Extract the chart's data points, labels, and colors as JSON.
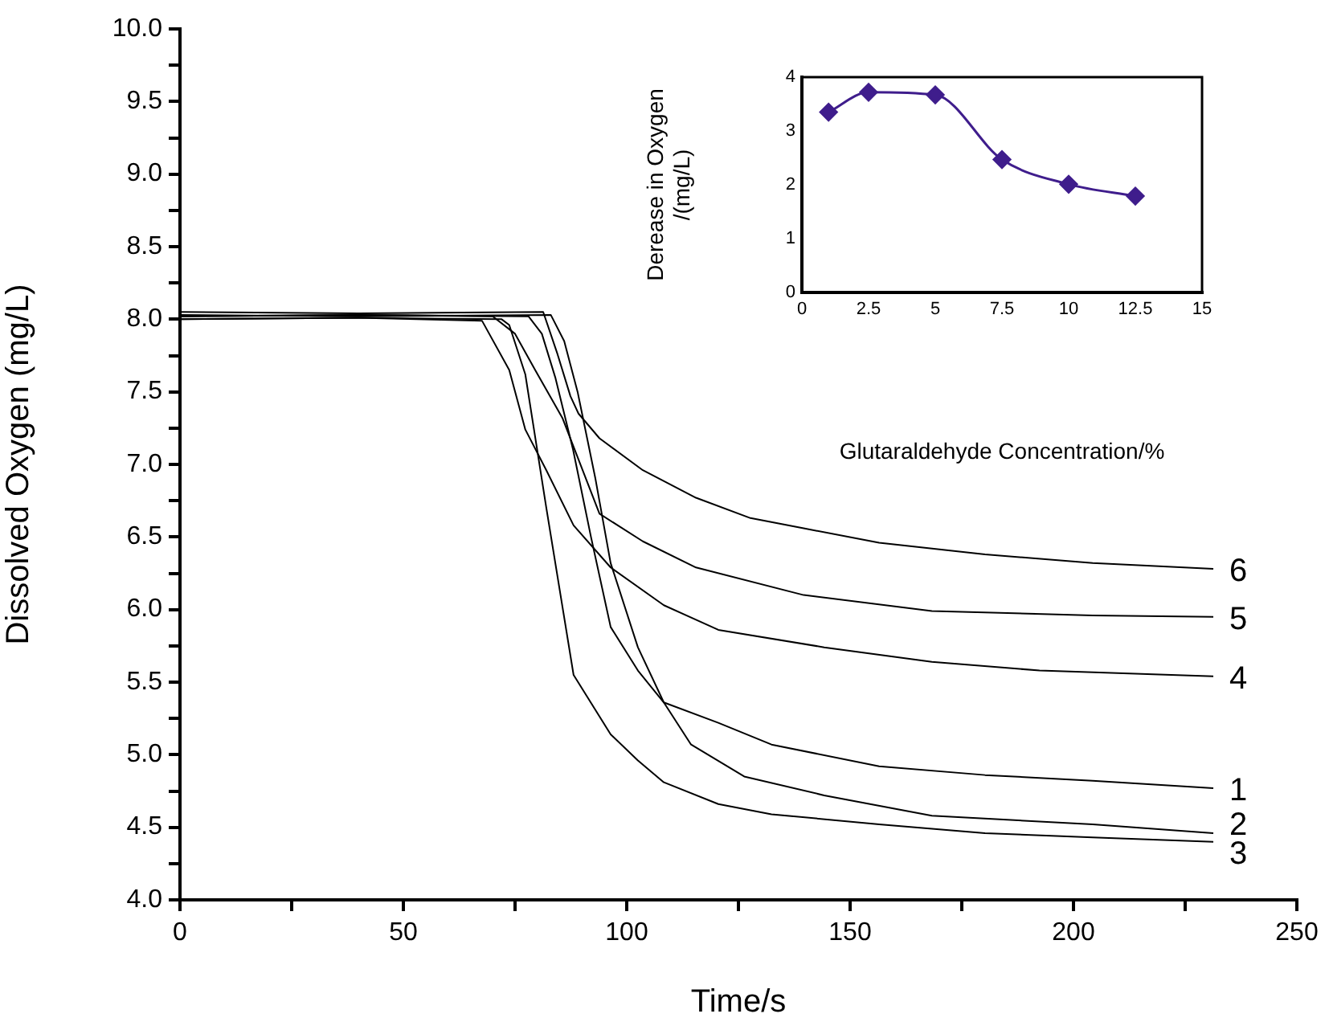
{
  "chart_data": [
    {
      "type": "line",
      "xlabel": "Time/s",
      "ylabel": "Dissolved Oxygen (mg/L)",
      "xlim": [
        0,
        250
      ],
      "xticks": [
        0,
        {
          "value": 25,
          "label": null
        },
        50,
        {
          "value": 75,
          "label": null
        },
        100,
        {
          "value": 125,
          "label": null
        },
        150,
        {
          "value": 175,
          "label": null
        },
        200,
        {
          "value": 225,
          "label": null
        },
        250
      ],
      "ylim": [
        4,
        10
      ],
      "yticks": [
        {
          "value": 4,
          "label": "4.0"
        },
        {
          "value": 4.25,
          "label": null
        },
        4.5,
        {
          "value": 4.75,
          "label": null
        },
        {
          "value": 5,
          "label": "5.0"
        },
        {
          "value": 5.25,
          "label": null
        },
        5.5,
        {
          "value": 5.75,
          "label": null
        },
        {
          "value": 6,
          "label": "6.0"
        },
        {
          "value": 6.25,
          "label": null
        },
        6.5,
        {
          "value": 6.75,
          "label": null
        },
        {
          "value": 7,
          "label": "7.0"
        },
        {
          "value": 7.25,
          "label": null
        },
        7.5,
        {
          "value": 7.75,
          "label": null
        },
        {
          "value": 8,
          "label": "8.0"
        },
        {
          "value": 8.25,
          "label": null
        },
        8.5,
        {
          "value": 8.75,
          "label": null
        },
        {
          "value": 9,
          "label": "9.0"
        },
        {
          "value": 9.25,
          "label": null
        },
        9.5,
        {
          "value": 9.75,
          "label": null
        },
        {
          "value": 10,
          "label": "10.0"
        }
      ],
      "marker": "none",
      "series": [
        {
          "name": "1",
          "color": "#000000",
          "x": [
            0,
            40,
            78,
            81,
            84,
            88,
            92,
            96.4,
            102.5,
            108.3,
            120.5,
            132.4,
            156.5,
            180.2,
            204.3,
            231.3
          ],
          "values": [
            8.02,
            8.03,
            8.02,
            7.9,
            7.6,
            7.1,
            6.5,
            5.88,
            5.58,
            5.36,
            5.22,
            5.07,
            4.92,
            4.86,
            4.82,
            4.77
          ]
        },
        {
          "name": "2",
          "color": "#000000",
          "x": [
            0,
            40,
            83,
            86,
            89,
            93,
            96.4,
            102.5,
            108.3,
            114.4,
            126.3,
            144.2,
            168.3,
            204.3,
            231.3
          ],
          "values": [
            8.03,
            8.02,
            8.03,
            7.85,
            7.5,
            6.9,
            6.32,
            5.74,
            5.36,
            5.07,
            4.85,
            4.72,
            4.58,
            4.52,
            4.46
          ]
        },
        {
          "name": "3",
          "color": "#000000",
          "x": [
            0,
            40,
            72,
            73.7,
            77.3,
            82,
            88.1,
            96.4,
            102.5,
            108.3,
            120.5,
            132.4,
            156.5,
            180.2,
            204.3,
            231.3
          ],
          "values": [
            8.0,
            8.01,
            8.0,
            7.96,
            7.62,
            6.7,
            5.55,
            5.14,
            4.96,
            4.81,
            4.66,
            4.59,
            4.52,
            4.46,
            4.43,
            4.4
          ]
        },
        {
          "name": "4",
          "color": "#000000",
          "x": [
            0,
            40,
            67.6,
            73.7,
            77.3,
            82,
            88.1,
            96.4,
            108.3,
            120.5,
            144.2,
            168.3,
            192.4,
            231.3
          ],
          "values": [
            8.0,
            8.01,
            7.99,
            7.65,
            7.24,
            6.96,
            6.58,
            6.29,
            6.03,
            5.86,
            5.74,
            5.64,
            5.58,
            5.54
          ]
        },
        {
          "name": "5",
          "color": "#000000",
          "x": [
            0,
            40,
            70,
            75,
            79.5,
            85.6,
            93.9,
            103.6,
            115.5,
            139.6,
            168.3,
            204.3,
            231.3
          ],
          "values": [
            8.02,
            8.03,
            8.02,
            7.9,
            7.65,
            7.32,
            6.66,
            6.47,
            6.29,
            6.1,
            5.99,
            5.96,
            5.95
          ]
        },
        {
          "name": "6",
          "color": "#000000",
          "x": [
            0,
            40,
            81.3,
            84.5,
            87.4,
            89.2,
            93.9,
            103.6,
            115.5,
            127.7,
            139.6,
            156.5,
            180.2,
            204.3,
            231.3
          ],
          "values": [
            8.05,
            8.04,
            8.05,
            7.76,
            7.47,
            7.35,
            7.18,
            6.96,
            6.77,
            6.63,
            6.56,
            6.46,
            6.38,
            6.32,
            6.28
          ]
        }
      ]
    },
    {
      "type": "line",
      "xlabel": "Glutaraldehyde Concentration/%",
      "ylabel": "Derease in Oxygen\n/(mg/L)",
      "xlim": [
        0,
        15
      ],
      "xticks": [
        0,
        2.5,
        5,
        7.5,
        10,
        12.5,
        15
      ],
      "ylim": [
        0,
        4
      ],
      "yticks": [
        0,
        1,
        2,
        3,
        4
      ],
      "marker": "diamond",
      "series": [
        {
          "color": "#3f1d8c",
          "x": [
            1,
            2.5,
            5,
            7.5,
            10,
            12.5
          ],
          "values": [
            3.35,
            3.72,
            3.67,
            2.47,
            2.01,
            1.79
          ]
        }
      ]
    }
  ]
}
